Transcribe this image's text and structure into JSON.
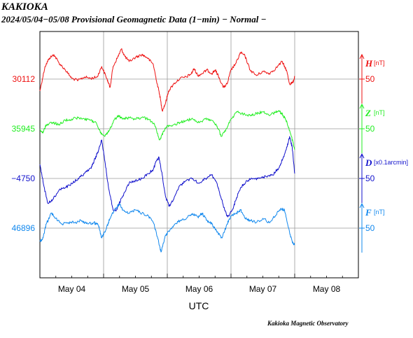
{
  "header": {
    "title": "KAKIOKA",
    "subtitle": "2024/05/04−05/08  Provisional Geomagnetic Data (1−min)  − Normal −"
  },
  "footer": {
    "credit": "Kakioka Magnetic Observatory"
  },
  "chart_data": {
    "type": "line",
    "xlabel": "UTC",
    "x_ticks": [
      "May 04",
      "May 05",
      "May 06",
      "May 07",
      "May 08"
    ],
    "x_range_days": [
      0,
      5
    ],
    "grid": true,
    "series": [
      {
        "name": "H",
        "unit": "[nT]",
        "base_label": "30112",
        "scale_label": "50",
        "color": "#ee1111",
        "points": [
          [
            0,
            130
          ],
          [
            0.08,
            95
          ],
          [
            0.15,
            83
          ],
          [
            0.22,
            78
          ],
          [
            0.3,
            90
          ],
          [
            0.4,
            100
          ],
          [
            0.5,
            112
          ],
          [
            0.6,
            115
          ],
          [
            0.7,
            110
          ],
          [
            0.8,
            112
          ],
          [
            0.9,
            110
          ],
          [
            0.97,
            95
          ],
          [
            1.05,
            112
          ],
          [
            1.1,
            125
          ],
          [
            1.15,
            95
          ],
          [
            1.22,
            82
          ],
          [
            1.28,
            70
          ],
          [
            1.33,
            80
          ],
          [
            1.4,
            88
          ],
          [
            1.5,
            82
          ],
          [
            1.6,
            78
          ],
          [
            1.68,
            82
          ],
          [
            1.78,
            92
          ],
          [
            1.83,
            115
          ],
          [
            1.88,
            135
          ],
          [
            1.92,
            158
          ],
          [
            1.97,
            148
          ],
          [
            2.02,
            130
          ],
          [
            2.1,
            120
          ],
          [
            2.2,
            112
          ],
          [
            2.3,
            110
          ],
          [
            2.38,
            105
          ],
          [
            2.42,
            98
          ],
          [
            2.48,
            108
          ],
          [
            2.55,
            105
          ],
          [
            2.62,
            100
          ],
          [
            2.7,
            105
          ],
          [
            2.75,
            100
          ],
          [
            2.8,
            108
          ],
          [
            2.88,
            125
          ],
          [
            2.94,
            120
          ],
          [
            3.0,
            100
          ],
          [
            3.08,
            90
          ],
          [
            3.15,
            75
          ],
          [
            3.22,
            80
          ],
          [
            3.3,
            100
          ],
          [
            3.4,
            108
          ],
          [
            3.5,
            102
          ],
          [
            3.6,
            105
          ],
          [
            3.7,
            98
          ],
          [
            3.8,
            88
          ],
          [
            3.87,
            100
          ],
          [
            3.92,
            120
          ],
          [
            3.97,
            118
          ],
          [
            4.0,
            110
          ]
        ]
      },
      {
        "name": "Z",
        "unit": "[nT]",
        "base_label": "35945",
        "scale_label": "50",
        "color": "#22ee22",
        "points": [
          [
            0,
            185
          ],
          [
            0.05,
            190
          ],
          [
            0.1,
            178
          ],
          [
            0.2,
            175
          ],
          [
            0.3,
            178
          ],
          [
            0.4,
            172
          ],
          [
            0.5,
            170
          ],
          [
            0.6,
            168
          ],
          [
            0.7,
            170
          ],
          [
            0.8,
            172
          ],
          [
            0.88,
            175
          ],
          [
            0.95,
            190
          ],
          [
            1.02,
            195
          ],
          [
            1.08,
            188
          ],
          [
            1.15,
            175
          ],
          [
            1.22,
            165
          ],
          [
            1.3,
            170
          ],
          [
            1.4,
            168
          ],
          [
            1.5,
            170
          ],
          [
            1.6,
            168
          ],
          [
            1.7,
            170
          ],
          [
            1.8,
            178
          ],
          [
            1.88,
            200
          ],
          [
            1.93,
            190
          ],
          [
            2.0,
            180
          ],
          [
            2.1,
            178
          ],
          [
            2.2,
            175
          ],
          [
            2.3,
            172
          ],
          [
            2.4,
            170
          ],
          [
            2.5,
            175
          ],
          [
            2.6,
            170
          ],
          [
            2.7,
            172
          ],
          [
            2.78,
            180
          ],
          [
            2.85,
            195
          ],
          [
            2.92,
            185
          ],
          [
            3.0,
            170
          ],
          [
            3.1,
            160
          ],
          [
            3.2,
            163
          ],
          [
            3.3,
            165
          ],
          [
            3.4,
            162
          ],
          [
            3.5,
            160
          ],
          [
            3.6,
            165
          ],
          [
            3.7,
            160
          ],
          [
            3.75,
            158
          ],
          [
            3.82,
            165
          ],
          [
            3.88,
            175
          ],
          [
            3.95,
            195
          ],
          [
            4.0,
            214
          ]
        ]
      },
      {
        "name": "D",
        "unit": "[x0.1arcmin]",
        "base_label": "−4750",
        "scale_label": "50",
        "color": "#1111cc",
        "points": [
          [
            0,
            235
          ],
          [
            0.05,
            260
          ],
          [
            0.12,
            290
          ],
          [
            0.2,
            285
          ],
          [
            0.3,
            272
          ],
          [
            0.4,
            268
          ],
          [
            0.5,
            262
          ],
          [
            0.6,
            255
          ],
          [
            0.7,
            248
          ],
          [
            0.8,
            240
          ],
          [
            0.85,
            230
          ],
          [
            0.92,
            215
          ],
          [
            0.97,
            200
          ],
          [
            1.02,
            230
          ],
          [
            1.08,
            270
          ],
          [
            1.15,
            300
          ],
          [
            1.2,
            300
          ],
          [
            1.3,
            280
          ],
          [
            1.4,
            262
          ],
          [
            1.5,
            258
          ],
          [
            1.6,
            255
          ],
          [
            1.7,
            248
          ],
          [
            1.78,
            242
          ],
          [
            1.83,
            230
          ],
          [
            1.87,
            225
          ],
          [
            1.92,
            250
          ],
          [
            1.97,
            280
          ],
          [
            2.03,
            295
          ],
          [
            2.1,
            285
          ],
          [
            2.2,
            265
          ],
          [
            2.3,
            258
          ],
          [
            2.4,
            255
          ],
          [
            2.5,
            262
          ],
          [
            2.6,
            255
          ],
          [
            2.7,
            250
          ],
          [
            2.78,
            262
          ],
          [
            2.82,
            275
          ],
          [
            2.9,
            300
          ],
          [
            2.95,
            310
          ],
          [
            3.02,
            300
          ],
          [
            3.08,
            285
          ],
          [
            3.15,
            268
          ],
          [
            3.25,
            258
          ],
          [
            3.35,
            255
          ],
          [
            3.45,
            255
          ],
          [
            3.55,
            252
          ],
          [
            3.65,
            250
          ],
          [
            3.75,
            240
          ],
          [
            3.82,
            225
          ],
          [
            3.88,
            210
          ],
          [
            3.92,
            195
          ],
          [
            3.96,
            210
          ],
          [
            4.0,
            248
          ]
        ]
      },
      {
        "name": "F",
        "unit": "[nT]",
        "base_label": "46896",
        "scale_label": "50",
        "color": "#1188ee",
        "points": [
          [
            0,
            345
          ],
          [
            0.05,
            340
          ],
          [
            0.1,
            320
          ],
          [
            0.18,
            305
          ],
          [
            0.25,
            312
          ],
          [
            0.35,
            320
          ],
          [
            0.45,
            318
          ],
          [
            0.55,
            318
          ],
          [
            0.65,
            315
          ],
          [
            0.75,
            320
          ],
          [
            0.85,
            318
          ],
          [
            0.92,
            322
          ],
          [
            0.97,
            340
          ],
          [
            1.03,
            330
          ],
          [
            1.1,
            312
          ],
          [
            1.18,
            298
          ],
          [
            1.25,
            292
          ],
          [
            1.3,
            300
          ],
          [
            1.4,
            305
          ],
          [
            1.5,
            300
          ],
          [
            1.6,
            305
          ],
          [
            1.7,
            308
          ],
          [
            1.78,
            318
          ],
          [
            1.85,
            340
          ],
          [
            1.9,
            360
          ],
          [
            1.96,
            340
          ],
          [
            2.02,
            330
          ],
          [
            2.1,
            322
          ],
          [
            2.2,
            315
          ],
          [
            2.3,
            312
          ],
          [
            2.4,
            305
          ],
          [
            2.48,
            310
          ],
          [
            2.55,
            305
          ],
          [
            2.62,
            315
          ],
          [
            2.7,
            320
          ],
          [
            2.78,
            332
          ],
          [
            2.86,
            340
          ],
          [
            2.94,
            320
          ],
          [
            3.0,
            308
          ],
          [
            3.08,
            305
          ],
          [
            3.15,
            300
          ],
          [
            3.22,
            312
          ],
          [
            3.3,
            315
          ],
          [
            3.4,
            318
          ],
          [
            3.5,
            312
          ],
          [
            3.6,
            318
          ],
          [
            3.7,
            308
          ],
          [
            3.78,
            298
          ],
          [
            3.84,
            300
          ],
          [
            3.9,
            325
          ],
          [
            3.96,
            345
          ],
          [
            4.0,
            350
          ]
        ]
      }
    ]
  }
}
